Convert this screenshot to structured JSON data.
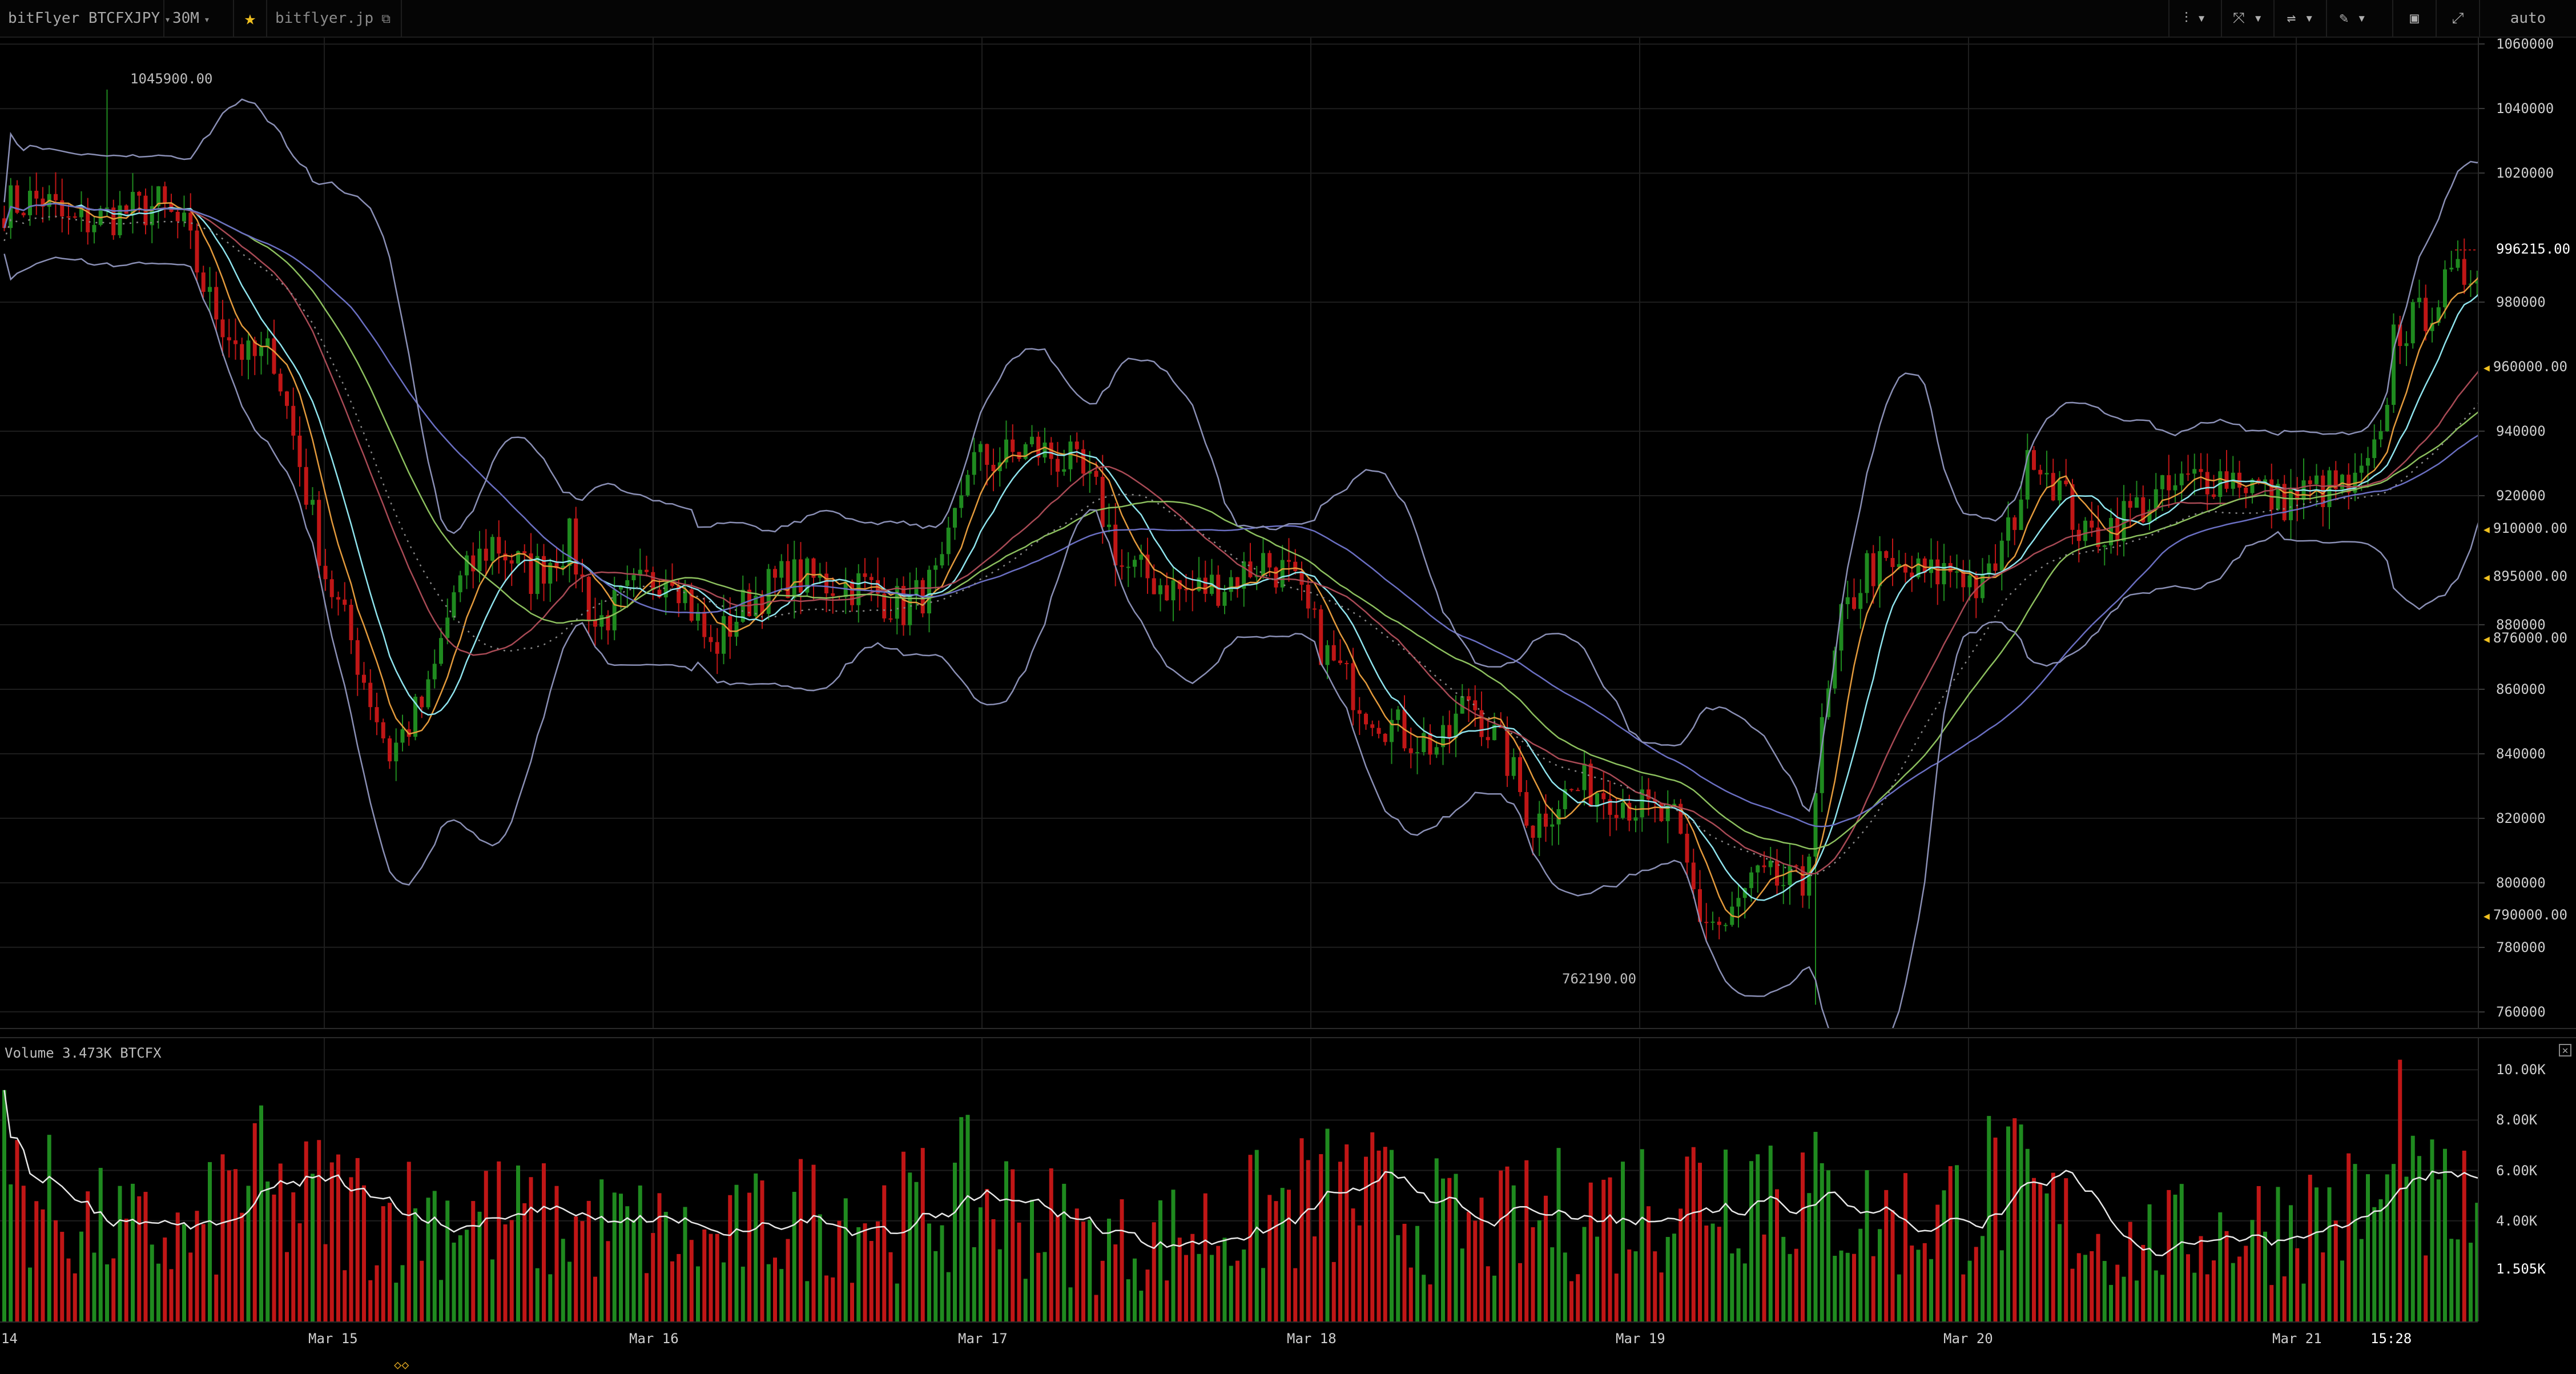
{
  "toolbar": {
    "symbol": "bitFlyer BTCFXJPY",
    "interval": "30M",
    "star_icon": "star-icon",
    "site": "bitflyer.jp",
    "external_icon": "external-link-icon",
    "tools": [
      "candles-icon",
      "indicators-icon",
      "compare-icon",
      "draw-icon",
      "snapshot-icon",
      "fullscreen-icon"
    ],
    "scale_mode": "auto"
  },
  "colors": {
    "up": "#1f8a1f",
    "down": "#c01616",
    "grid": "#1e1e1e",
    "ma_orange": "#e39a3c",
    "ma_cyan": "#8fe4ee",
    "ma_red": "#a84a55",
    "ma_green": "#8cbf5e",
    "ma_blue": "#6a6fc2",
    "bollinger": "#8a8fb5",
    "vol_ma": "#e8e8e8"
  },
  "price_axis": {
    "labels": [
      "1060000",
      "1040000",
      "1020000",
      "980000",
      "940000",
      "920000",
      "880000",
      "860000",
      "840000",
      "820000",
      "800000",
      "780000",
      "760000"
    ],
    "markers": [
      {
        "label": "960000.00",
        "value": 960000
      },
      {
        "label": "910000.00",
        "value": 910000
      },
      {
        "label": "895000.00",
        "value": 895000
      },
      {
        "label": "876000.00",
        "value": 876000
      },
      {
        "label": "790000.00",
        "value": 790000
      }
    ],
    "current_price": "996215.00",
    "current_value": 996215
  },
  "annotations": {
    "high": "1045900.00",
    "low": "762190.00"
  },
  "volume": {
    "legend_label": "Volume",
    "legend_value": "3.473K BTCFX",
    "axis_labels": [
      "10.00K",
      "8.00K",
      "6.00K",
      "4.00K"
    ],
    "current_label": "1.505K"
  },
  "time_axis": {
    "labels": [
      "14",
      "Mar 15",
      "Mar 16",
      "Mar 17",
      "Mar 18",
      "Mar 19",
      "Mar 20",
      "Mar 21"
    ],
    "current_time": "15:28"
  },
  "chart_data": {
    "type": "candlestick",
    "title": "bitFlyer BTCFXJPY",
    "interval": "30M",
    "x_start": "Mar 14",
    "x_end": "Mar 21 15:28",
    "ylim": [
      755000,
      1062000
    ],
    "price_path": [
      [
        0,
        1010000
      ],
      [
        6,
        1012000
      ],
      [
        10,
        1004000
      ],
      [
        24,
        1010000
      ],
      [
        28,
        1002000
      ],
      [
        32,
        980000
      ],
      [
        38,
        962000
      ],
      [
        42,
        964000
      ],
      [
        46,
        930000
      ],
      [
        50,
        896000
      ],
      [
        54,
        875000
      ],
      [
        60,
        840000
      ],
      [
        66,
        858000
      ],
      [
        70,
        890000
      ],
      [
        76,
        906000
      ],
      [
        82,
        895000
      ],
      [
        88,
        906000
      ],
      [
        92,
        880000
      ],
      [
        98,
        890000
      ],
      [
        104,
        898000
      ],
      [
        110,
        872000
      ],
      [
        116,
        888000
      ],
      [
        122,
        895000
      ],
      [
        128,
        893000
      ],
      [
        134,
        892000
      ],
      [
        140,
        885000
      ],
      [
        146,
        895000
      ],
      [
        150,
        930000
      ],
      [
        156,
        932000
      ],
      [
        160,
        935000
      ],
      [
        166,
        930000
      ],
      [
        170,
        920000
      ],
      [
        174,
        898000
      ],
      [
        180,
        893000
      ],
      [
        184,
        890000
      ],
      [
        190,
        893000
      ],
      [
        196,
        900000
      ],
      [
        200,
        895000
      ],
      [
        206,
        870000
      ],
      [
        212,
        855000
      ],
      [
        218,
        846000
      ],
      [
        224,
        842000
      ],
      [
        228,
        858000
      ],
      [
        234,
        838000
      ],
      [
        238,
        818000
      ],
      [
        242,
        826000
      ],
      [
        246,
        830000
      ],
      [
        250,
        828000
      ],
      [
        256,
        822000
      ],
      [
        260,
        818000
      ],
      [
        264,
        790000
      ],
      [
        268,
        786000
      ],
      [
        272,
        800000
      ],
      [
        276,
        800000
      ],
      [
        280,
        798000
      ],
      [
        283,
        846000
      ],
      [
        286,
        880000
      ],
      [
        290,
        898000
      ],
      [
        294,
        896000
      ],
      [
        300,
        895000
      ],
      [
        304,
        898000
      ],
      [
        308,
        890000
      ],
      [
        312,
        908000
      ],
      [
        316,
        935000
      ],
      [
        320,
        922000
      ],
      [
        324,
        906000
      ],
      [
        330,
        914000
      ],
      [
        336,
        920000
      ],
      [
        342,
        926000
      ],
      [
        348,
        926000
      ],
      [
        354,
        918000
      ],
      [
        360,
        922000
      ],
      [
        366,
        922000
      ],
      [
        370,
        935000
      ],
      [
        372,
        970000
      ],
      [
        376,
        975000
      ],
      [
        380,
        984000
      ],
      [
        384,
        990000
      ],
      [
        386,
        996215
      ]
    ],
    "high": 1045900,
    "low": 762190,
    "volume_ylim": [
      0,
      10800
    ],
    "volume_path": [
      [
        0,
        6000
      ],
      [
        10,
        4000
      ],
      [
        20,
        3500
      ],
      [
        30,
        3200
      ],
      [
        38,
        6000
      ],
      [
        42,
        4500
      ],
      [
        50,
        4800
      ],
      [
        60,
        4200
      ],
      [
        70,
        4500
      ],
      [
        80,
        4000
      ],
      [
        90,
        3800
      ],
      [
        100,
        3600
      ],
      [
        110,
        3000
      ],
      [
        120,
        4000
      ],
      [
        130,
        4400
      ],
      [
        140,
        4200
      ],
      [
        150,
        5000
      ],
      [
        160,
        4300
      ],
      [
        170,
        3000
      ],
      [
        180,
        3400
      ],
      [
        190,
        3800
      ],
      [
        200,
        4600
      ],
      [
        210,
        5000
      ],
      [
        220,
        4200
      ],
      [
        230,
        3500
      ],
      [
        240,
        4200
      ],
      [
        250,
        4500
      ],
      [
        260,
        5200
      ],
      [
        270,
        5800
      ],
      [
        275,
        6000
      ],
      [
        280,
        5000
      ],
      [
        290,
        4200
      ],
      [
        300,
        4000
      ],
      [
        310,
        5500
      ],
      [
        320,
        4000
      ],
      [
        330,
        3000
      ],
      [
        340,
        3400
      ],
      [
        350,
        3800
      ],
      [
        360,
        4200
      ],
      [
        370,
        4600
      ],
      [
        380,
        4500
      ],
      [
        386,
        3900
      ]
    ]
  }
}
